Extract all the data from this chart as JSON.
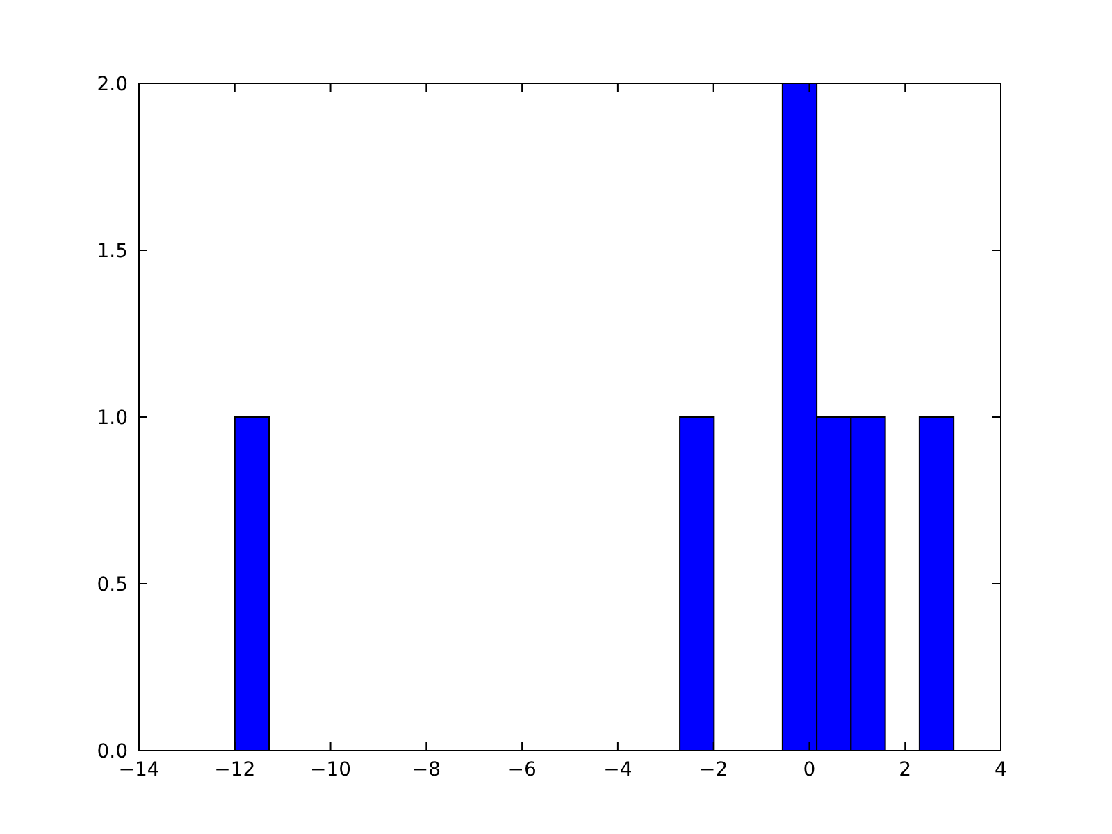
{
  "chart_data": {
    "type": "histogram",
    "bins": [
      -12,
      -11.285,
      -10.57,
      -9.855,
      -9.14,
      -8.425,
      -7.71,
      -6.995,
      -6.28,
      -5.565,
      -4.85,
      -4.135,
      -3.42,
      -2.705,
      -1.99,
      -1.275,
      -0.56,
      0.155,
      0.87,
      1.585,
      2.3,
      3.015
    ],
    "values": [
      1,
      0,
      0,
      0,
      0,
      0,
      0,
      0,
      0,
      0,
      0,
      0,
      0,
      1,
      0,
      0,
      2,
      1,
      1,
      0,
      1
    ],
    "color": "#0000ff",
    "xlim": [
      -14,
      4
    ],
    "xticks": [
      {
        "value": -14,
        "label": "−14"
      },
      {
        "value": -12,
        "label": "−12"
      },
      {
        "value": -10,
        "label": "−10"
      },
      {
        "value": -8,
        "label": "−8"
      },
      {
        "value": -6,
        "label": "−6"
      },
      {
        "value": -4,
        "label": "−4"
      },
      {
        "value": -2,
        "label": "−2"
      },
      0,
      2,
      4
    ],
    "ylim": [
      0,
      2
    ],
    "yticks": [
      {
        "value": 0,
        "label": "0.0"
      },
      {
        "value": 0.5,
        "label": "0.5"
      },
      {
        "value": 1,
        "label": "1.0"
      },
      {
        "value": 1.5,
        "label": "1.5"
      },
      {
        "value": 2,
        "label": "2.0"
      }
    ]
  }
}
